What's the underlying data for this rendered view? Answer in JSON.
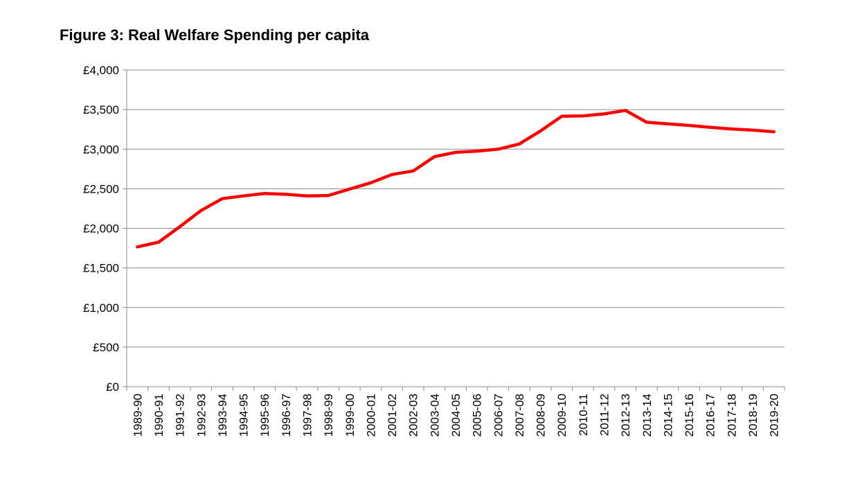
{
  "chart_data": {
    "type": "line",
    "title": "Figure 3: Real Welfare Spending per capita",
    "xlabel": "",
    "ylabel": "",
    "ylim": [
      0,
      4000
    ],
    "grid": true,
    "yticks": [
      0,
      500,
      1000,
      1500,
      2000,
      2500,
      3000,
      3500,
      4000
    ],
    "ytick_labels": [
      "£0",
      "£500",
      "£1,000",
      "£1,500",
      "£2,000",
      "£2,500",
      "£3,000",
      "£3,500",
      "£4,000"
    ],
    "categories": [
      "1989-90",
      "1990-91",
      "1991-92",
      "1992-93",
      "1993-94",
      "1994-95",
      "1995-96",
      "1996-97",
      "1997-98",
      "1998-99",
      "1999-00",
      "2000-01",
      "2001-02",
      "2002-03",
      "2003-04",
      "2004-05",
      "2005-06",
      "2006-07",
      "2007-08",
      "2008-09",
      "2009-10",
      "2010-11",
      "2011-12",
      "2012-13",
      "2013-14",
      "2014-15",
      "2015-16",
      "2016-17",
      "2017-18",
      "2018-19",
      "2019-20"
    ],
    "series": [
      {
        "name": "Real Welfare Spending per capita",
        "color": "#ff0000",
        "values": [
          1765,
          1825,
          2020,
          2225,
          2375,
          2410,
          2440,
          2430,
          2410,
          2415,
          2495,
          2575,
          2680,
          2725,
          2905,
          2960,
          2975,
          3000,
          3065,
          3230,
          3415,
          3420,
          3445,
          3490,
          3340,
          3320,
          3300,
          3275,
          3255,
          3240,
          3220
        ]
      }
    ]
  }
}
